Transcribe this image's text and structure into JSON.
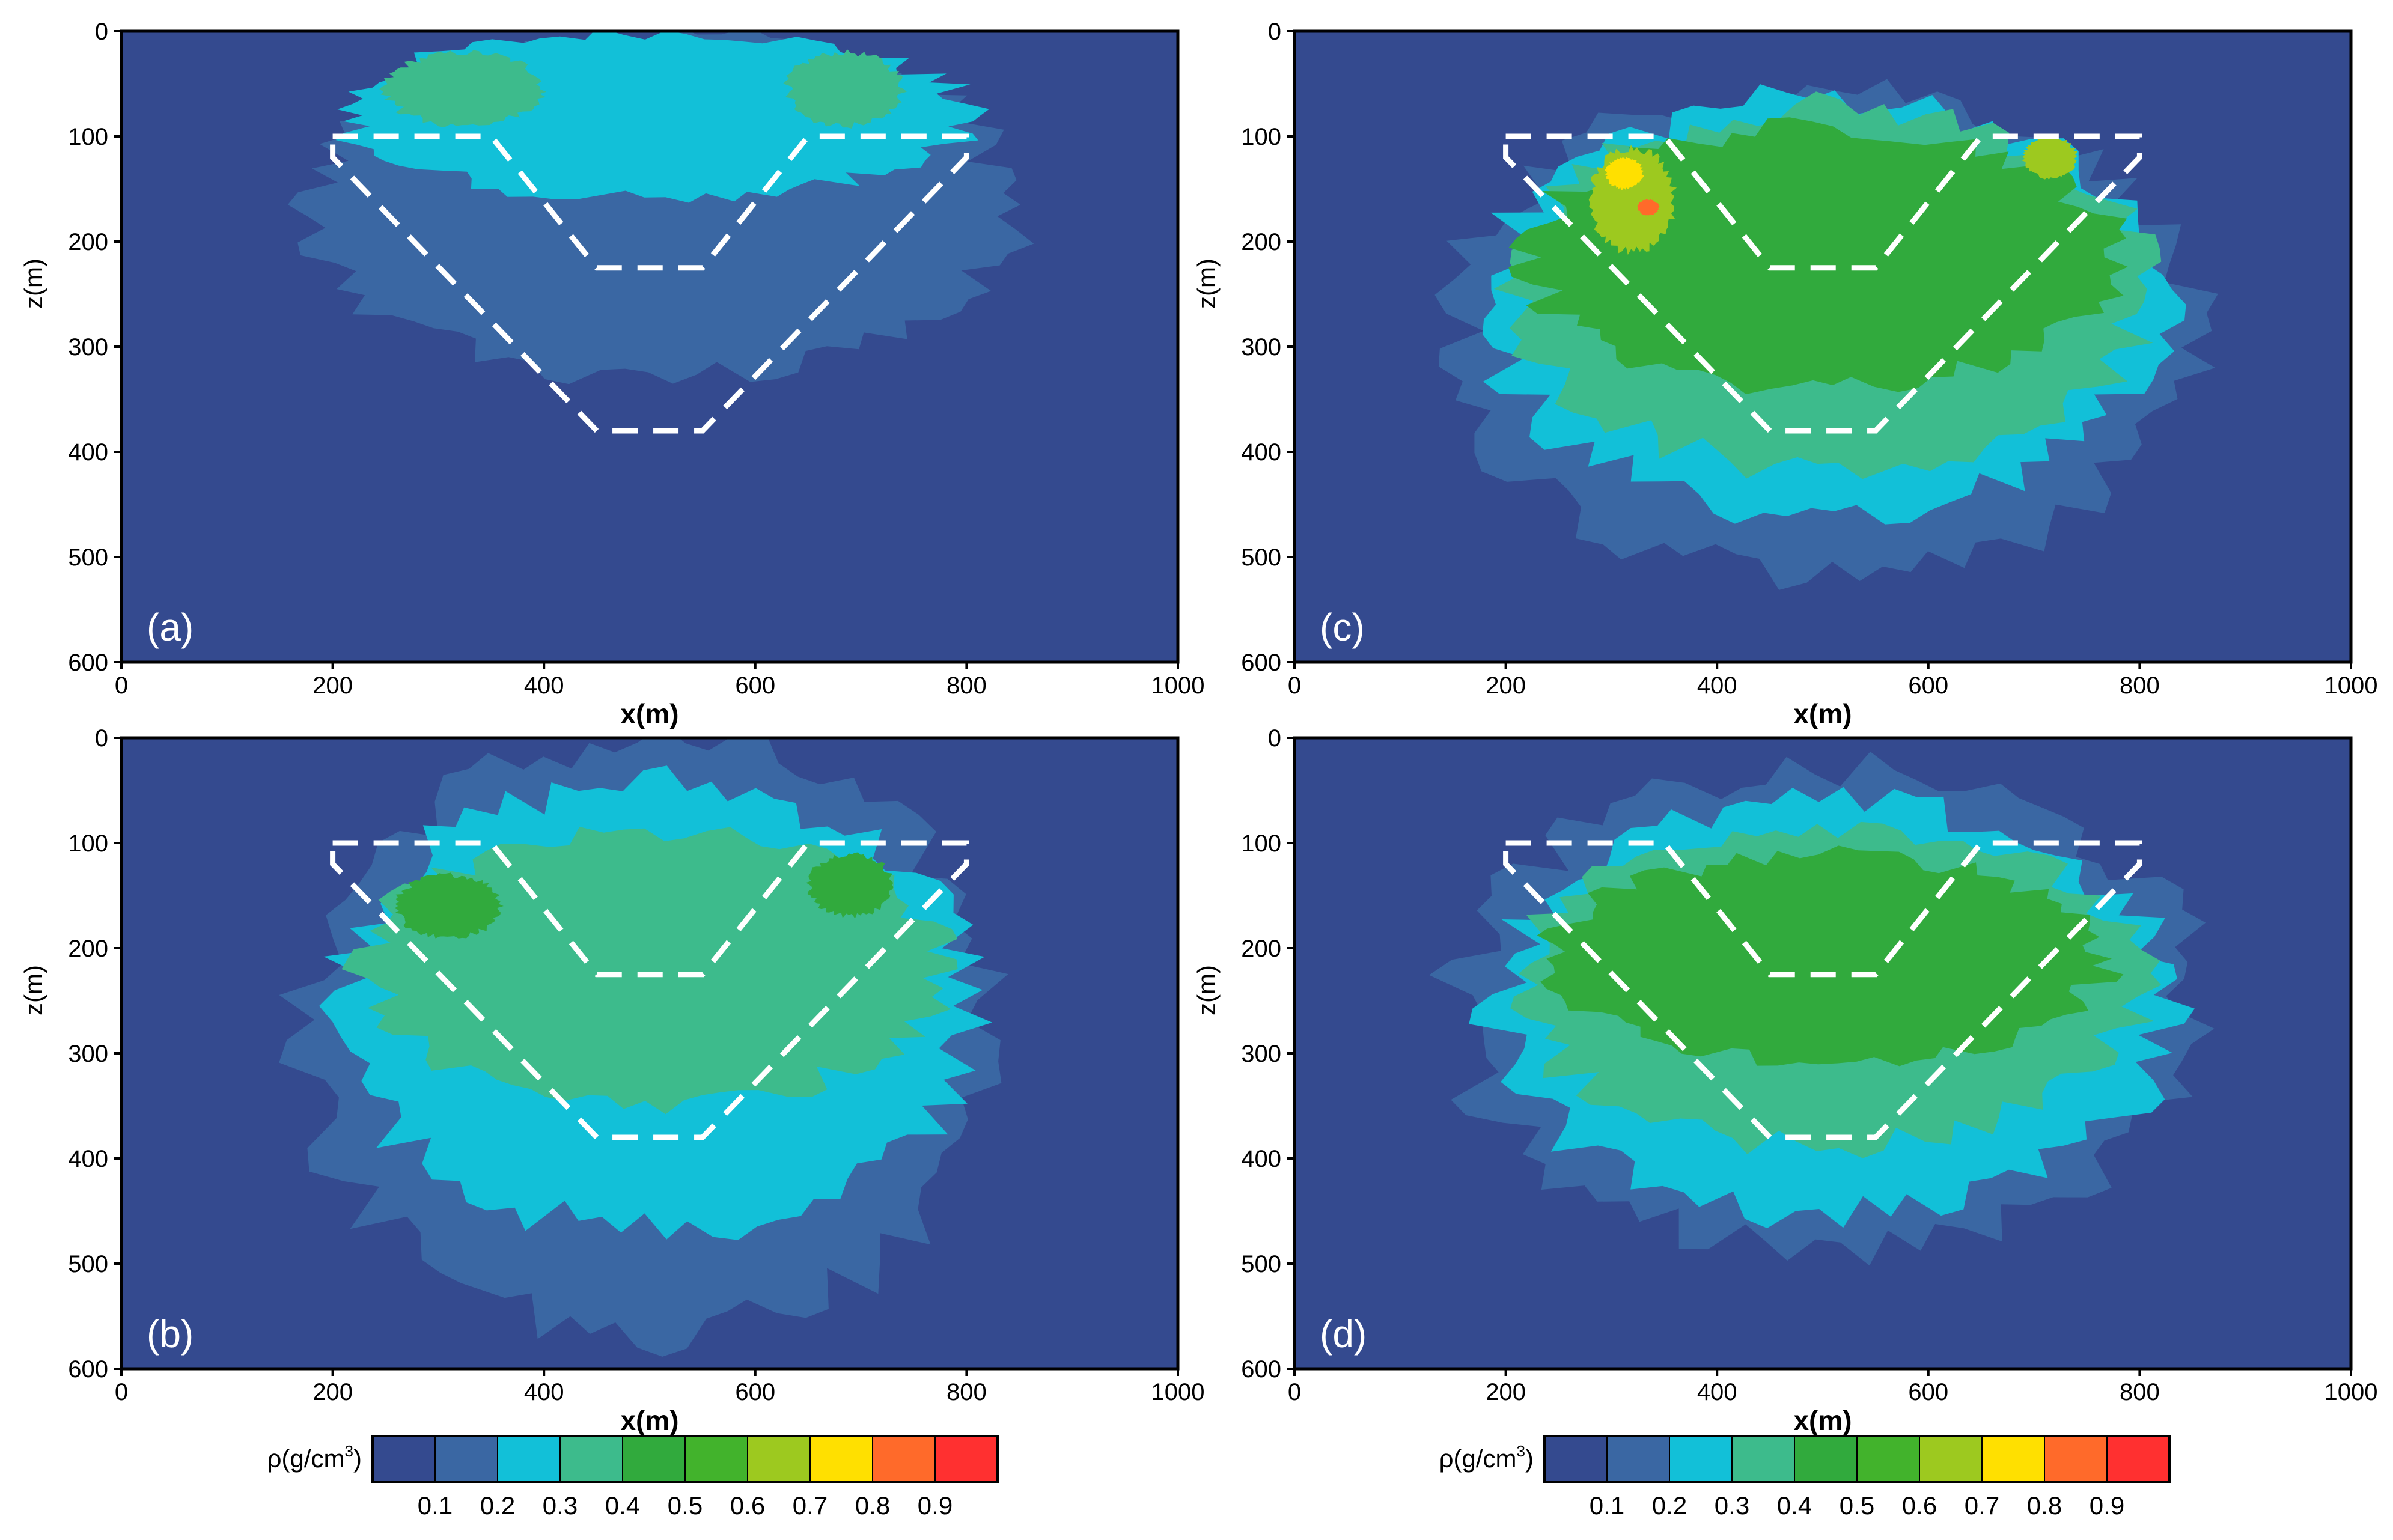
{
  "chart_data": {
    "type": "heatmap",
    "x_axis": {
      "label": "x(m)",
      "range": [
        0,
        1000
      ],
      "ticks": [
        "0",
        "200",
        "400",
        "600",
        "800",
        "1000"
      ]
    },
    "z_axis": {
      "label": "z(m)",
      "range": [
        0,
        600
      ],
      "reversed": true,
      "ticks": [
        "0",
        "100",
        "200",
        "300",
        "400",
        "500",
        "600"
      ]
    },
    "colorbar": {
      "label": "ρ(g/cm",
      "label_superscript": "3",
      "label_close": ")",
      "tick_labels": [
        "0.1",
        "0.2",
        "0.3",
        "0.4",
        "0.5",
        "0.6",
        "0.7",
        "0.8",
        "0.9"
      ],
      "levels": [
        0.05,
        0.1,
        0.2,
        0.3,
        0.4,
        0.5,
        0.6,
        0.7,
        0.8,
        0.9,
        1.0
      ],
      "colors": [
        "#344a8f",
        "#3a67a3",
        "#12c0d8",
        "#3dbb8c",
        "#31aa3d",
        "#42b32c",
        "#9dc91f",
        "#ffe000",
        "#ff6a2a",
        "#ff3030"
      ]
    },
    "model_outline": {
      "style": "white dashed",
      "polygon_xz": [
        [
          200,
          100
        ],
        [
          350,
          100
        ],
        [
          450,
          225
        ],
        [
          550,
          225
        ],
        [
          650,
          100
        ],
        [
          800,
          100
        ],
        [
          800,
          120
        ],
        [
          550,
          380
        ],
        [
          450,
          380
        ],
        [
          200,
          120
        ]
      ]
    },
    "panels": [
      {
        "label": "(a)",
        "density_bodies": [
          {
            "value": 0.15,
            "x": [
              175,
              845
            ],
            "z": [
              0,
              330
            ]
          },
          {
            "value": 0.25,
            "x": [
              210,
              800
            ],
            "z": [
              0,
              160
            ]
          },
          {
            "value": 0.35,
            "x": [
              250,
              400
            ],
            "z": [
              20,
              90
            ]
          },
          {
            "value": 0.35,
            "x": [
              630,
              740
            ],
            "z": [
              20,
              90
            ]
          }
        ]
      },
      {
        "label": "(b)",
        "density_bodies": [
          {
            "value": 0.15,
            "x": [
              170,
              830
            ],
            "z": [
              0,
              575
            ]
          },
          {
            "value": 0.25,
            "x": [
              200,
              810
            ],
            "z": [
              40,
              470
            ]
          },
          {
            "value": 0.35,
            "x": [
              230,
              780
            ],
            "z": [
              90,
              350
            ]
          },
          {
            "value": 0.45,
            "x": [
              260,
              360
            ],
            "z": [
              130,
              190
            ]
          },
          {
            "value": 0.45,
            "x": [
              650,
              730
            ],
            "z": [
              110,
              170
            ]
          }
        ]
      },
      {
        "label": "(c)",
        "density_bodies": [
          {
            "value": 0.15,
            "x": [
              145,
              850
            ],
            "z": [
              50,
              520
            ]
          },
          {
            "value": 0.25,
            "x": [
              180,
              820
            ],
            "z": [
              60,
              460
            ]
          },
          {
            "value": 0.35,
            "x": [
              205,
              805
            ],
            "z": [
              70,
              420
            ]
          },
          {
            "value": 0.45,
            "x": [
              220,
              780
            ],
            "z": [
              90,
              340
            ]
          },
          {
            "value": 0.65,
            "x": [
              280,
              360
            ],
            "z": [
              110,
              210
            ]
          },
          {
            "value": 0.75,
            "x": [
              295,
              330
            ],
            "z": [
              120,
              150
            ]
          },
          {
            "value": 0.85,
            "x": [
              325,
              345
            ],
            "z": [
              160,
              175
            ]
          },
          {
            "value": 0.65,
            "x": [
              690,
              740
            ],
            "z": [
              100,
              140
            ]
          }
        ]
      },
      {
        "label": "(d)",
        "density_bodies": [
          {
            "value": 0.15,
            "x": [
              150,
              860
            ],
            "z": [
              30,
              490
            ]
          },
          {
            "value": 0.25,
            "x": [
              185,
              830
            ],
            "z": [
              60,
              455
            ]
          },
          {
            "value": 0.35,
            "x": [
              210,
              800
            ],
            "z": [
              80,
              390
            ]
          },
          {
            "value": 0.45,
            "x": [
              240,
              770
            ],
            "z": [
              110,
              310
            ]
          }
        ]
      }
    ]
  }
}
